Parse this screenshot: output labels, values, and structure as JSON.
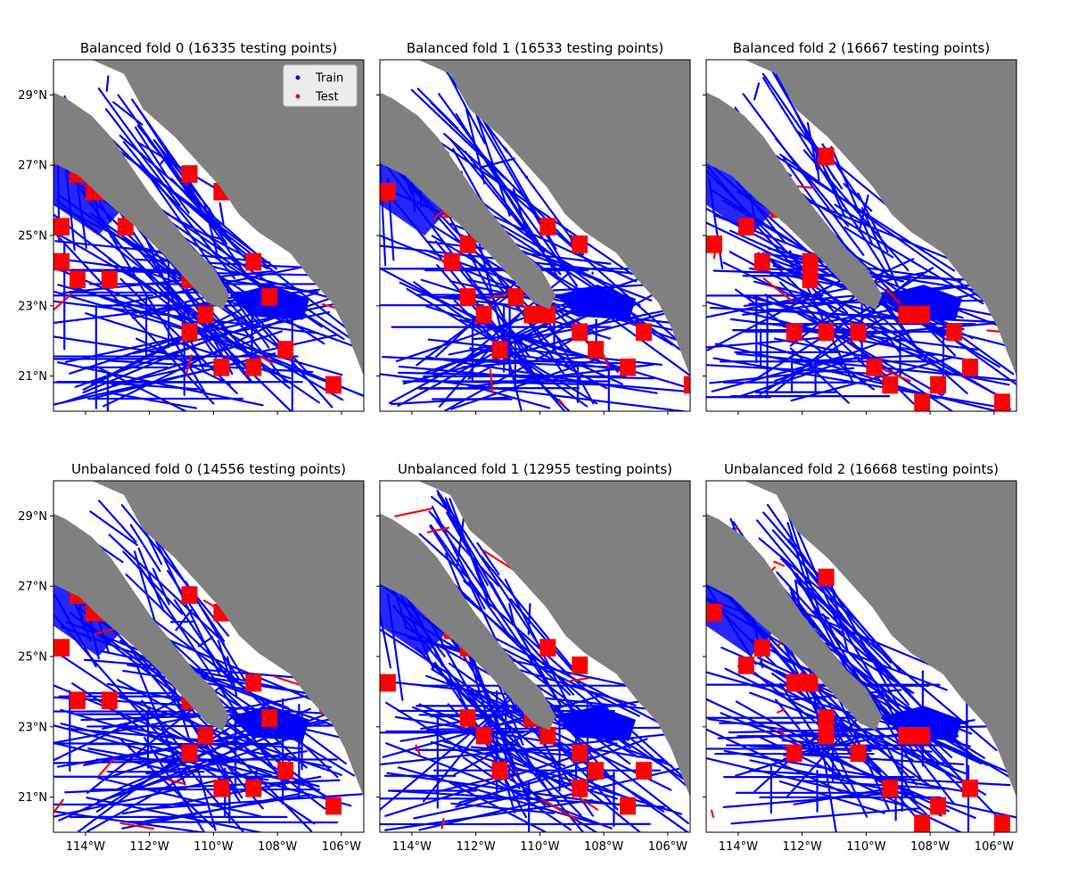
{
  "colors": {
    "train": "#0000ff",
    "test": "#ff0000",
    "land": "#808080",
    "ocean": "#ffffff"
  },
  "chart_data": [
    {
      "type": "scatter",
      "title": "Balanced fold 0 (16335 testing points)",
      "xlim": [
        -115,
        -105.3
      ],
      "ylim": [
        20,
        30
      ],
      "xticks": [
        {
          "value": -114,
          "label": "114°W"
        },
        {
          "value": -112,
          "label": "112°W"
        },
        {
          "value": -110,
          "label": "110°W"
        },
        {
          "value": -108,
          "label": "108°W"
        },
        {
          "value": -106,
          "label": "106°W"
        }
      ],
      "yticks": [
        {
          "value": 21,
          "label": "21°N"
        },
        {
          "value": 23,
          "label": "23°N"
        },
        {
          "value": 25,
          "label": "25°N"
        },
        {
          "value": 27,
          "label": "27°N"
        },
        {
          "value": 29,
          "label": "29°N"
        }
      ],
      "show_xticklabels": false,
      "show_yticklabels": true,
      "legend": {
        "position": "top-right",
        "entries": [
          "Train",
          "Test"
        ]
      },
      "series": [
        {
          "name": "Train"
        },
        {
          "name": "Test"
        }
      ],
      "test_blocks": [
        [
          -115,
          27
        ],
        [
          -114.5,
          26.5
        ],
        [
          -114,
          26
        ],
        [
          -113.5,
          26
        ],
        [
          -113,
          25
        ],
        [
          -111,
          26.5
        ],
        [
          -115,
          25
        ],
        [
          -115,
          24
        ],
        [
          -114.5,
          23.5
        ],
        [
          -113.5,
          23.5
        ],
        [
          -111,
          23.5
        ],
        [
          -110.5,
          22.5
        ],
        [
          -111,
          22
        ],
        [
          -108.5,
          23
        ],
        [
          -110,
          21
        ],
        [
          -109,
          21
        ],
        [
          -108,
          21.5
        ],
        [
          -106.5,
          20.5
        ],
        [
          -109,
          24
        ],
        [
          -110,
          26
        ]
      ]
    },
    {
      "type": "scatter",
      "title": "Balanced fold 1 (16533 testing points)",
      "xlim": [
        -115,
        -105.3
      ],
      "ylim": [
        20,
        30
      ],
      "xticks": [
        {
          "value": -114,
          "label": "114°W"
        },
        {
          "value": -112,
          "label": "112°W"
        },
        {
          "value": -110,
          "label": "110°W"
        },
        {
          "value": -108,
          "label": "108°W"
        },
        {
          "value": -106,
          "label": "106°W"
        }
      ],
      "yticks": [
        {
          "value": 21,
          "label": "21°N"
        },
        {
          "value": 23,
          "label": "23°N"
        },
        {
          "value": 25,
          "label": "25°N"
        },
        {
          "value": 27,
          "label": "27°N"
        },
        {
          "value": 29,
          "label": "29°N"
        }
      ],
      "show_xticklabels": false,
      "show_yticklabels": false,
      "legend": null,
      "series": [],
      "test_blocks": [
        [
          -115,
          26
        ],
        [
          -113,
          25.5
        ],
        [
          -112.5,
          24.5
        ],
        [
          -113,
          24
        ],
        [
          -112.5,
          23
        ],
        [
          -112,
          22.5
        ],
        [
          -111,
          23
        ],
        [
          -110.5,
          22.5
        ],
        [
          -110,
          22.5
        ],
        [
          -109,
          22
        ],
        [
          -108.5,
          21.5
        ],
        [
          -107.5,
          21
        ],
        [
          -107,
          22
        ],
        [
          -105.5,
          20.5
        ],
        [
          -110,
          25
        ],
        [
          -109,
          24.5
        ],
        [
          -111.5,
          21.5
        ]
      ]
    },
    {
      "type": "scatter",
      "title": "Balanced fold 2 (16667 testing points)",
      "xlim": [
        -115,
        -105.3
      ],
      "ylim": [
        20,
        30
      ],
      "xticks": [
        {
          "value": -114,
          "label": "114°W"
        },
        {
          "value": -112,
          "label": "112°W"
        },
        {
          "value": -110,
          "label": "110°W"
        },
        {
          "value": -108,
          "label": "108°W"
        },
        {
          "value": -106,
          "label": "106°W"
        }
      ],
      "yticks": [
        {
          "value": 21,
          "label": "21°N"
        },
        {
          "value": 23,
          "label": "23°N"
        },
        {
          "value": 25,
          "label": "25°N"
        },
        {
          "value": 27,
          "label": "27°N"
        },
        {
          "value": 29,
          "label": "29°N"
        }
      ],
      "show_xticklabels": false,
      "show_yticklabels": false,
      "legend": null,
      "series": [],
      "test_blocks": [
        [
          -111.5,
          27
        ],
        [
          -113,
          25.5
        ],
        [
          -114,
          25
        ],
        [
          -115,
          24.5
        ],
        [
          -113.5,
          24
        ],
        [
          -112,
          24
        ],
        [
          -112,
          23.5
        ],
        [
          -112.5,
          22
        ],
        [
          -111.5,
          22
        ],
        [
          -110.5,
          22
        ],
        [
          -109,
          22.5
        ],
        [
          -108.5,
          22.5
        ],
        [
          -107.5,
          22
        ],
        [
          -110,
          21
        ],
        [
          -109.5,
          20.5
        ],
        [
          -108,
          20.5
        ],
        [
          -107,
          21
        ],
        [
          -106,
          20
        ],
        [
          -108.5,
          20
        ]
      ]
    },
    {
      "type": "scatter",
      "title": "Unbalanced fold 0 (14556 testing points)",
      "xlim": [
        -115,
        -105.3
      ],
      "ylim": [
        20,
        30
      ],
      "xticks": [
        {
          "value": -114,
          "label": "114°W"
        },
        {
          "value": -112,
          "label": "112°W"
        },
        {
          "value": -110,
          "label": "110°W"
        },
        {
          "value": -108,
          "label": "108°W"
        },
        {
          "value": -106,
          "label": "106°W"
        }
      ],
      "yticks": [
        {
          "value": 21,
          "label": "21°N"
        },
        {
          "value": 23,
          "label": "23°N"
        },
        {
          "value": 25,
          "label": "25°N"
        },
        {
          "value": 27,
          "label": "27°N"
        },
        {
          "value": 29,
          "label": "29°N"
        }
      ],
      "show_xticklabels": true,
      "show_yticklabels": true,
      "legend": null,
      "series": [],
      "test_blocks": [
        [
          -115,
          27
        ],
        [
          -114.5,
          26.5
        ],
        [
          -114,
          26
        ],
        [
          -113.5,
          26
        ],
        [
          -111,
          26.5
        ],
        [
          -115,
          25
        ],
        [
          -114.5,
          23.5
        ],
        [
          -113.5,
          23.5
        ],
        [
          -111,
          23.5
        ],
        [
          -110.5,
          22.5
        ],
        [
          -111,
          22
        ],
        [
          -108.5,
          23
        ],
        [
          -110,
          21
        ],
        [
          -109,
          21
        ],
        [
          -108,
          21.5
        ],
        [
          -106.5,
          20.5
        ],
        [
          -109,
          24
        ],
        [
          -110,
          26
        ]
      ]
    },
    {
      "type": "scatter",
      "title": "Unbalanced fold 1 (12955 testing points)",
      "xlim": [
        -115,
        -105.3
      ],
      "ylim": [
        20,
        30
      ],
      "xticks": [
        {
          "value": -114,
          "label": "114°W"
        },
        {
          "value": -112,
          "label": "112°W"
        },
        {
          "value": -110,
          "label": "110°W"
        },
        {
          "value": -108,
          "label": "108°W"
        },
        {
          "value": -106,
          "label": "106°W"
        }
      ],
      "yticks": [
        {
          "value": 21,
          "label": "21°N"
        },
        {
          "value": 23,
          "label": "23°N"
        },
        {
          "value": 25,
          "label": "25°N"
        },
        {
          "value": 27,
          "label": "27°N"
        },
        {
          "value": 29,
          "label": "29°N"
        }
      ],
      "show_xticklabels": true,
      "show_yticklabels": false,
      "legend": null,
      "series": [],
      "test_blocks": [
        [
          -115,
          24
        ],
        [
          -113,
          25.5
        ],
        [
          -112.5,
          25
        ],
        [
          -112.5,
          23
        ],
        [
          -112,
          22.5
        ],
        [
          -110.5,
          23
        ],
        [
          -110,
          22.5
        ],
        [
          -109,
          22
        ],
        [
          -108.5,
          21.5
        ],
        [
          -109,
          21
        ],
        [
          -107.5,
          20.5
        ],
        [
          -107,
          21.5
        ],
        [
          -110,
          25
        ],
        [
          -109,
          24.5
        ],
        [
          -111.5,
          21.5
        ]
      ]
    },
    {
      "type": "scatter",
      "title": "Unbalanced fold 2 (16668 testing points)",
      "xlim": [
        -115,
        -105.3
      ],
      "ylim": [
        20,
        30
      ],
      "xticks": [
        {
          "value": -114,
          "label": "114°W"
        },
        {
          "value": -112,
          "label": "112°W"
        },
        {
          "value": -110,
          "label": "110°W"
        },
        {
          "value": -108,
          "label": "108°W"
        },
        {
          "value": -106,
          "label": "106°W"
        }
      ],
      "yticks": [
        {
          "value": 21,
          "label": "21°N"
        },
        {
          "value": 23,
          "label": "23°N"
        },
        {
          "value": 25,
          "label": "25°N"
        },
        {
          "value": 27,
          "label": "27°N"
        },
        {
          "value": 29,
          "label": "29°N"
        }
      ],
      "show_xticklabels": true,
      "show_yticklabels": false,
      "legend": null,
      "series": [],
      "test_blocks": [
        [
          -115,
          26
        ],
        [
          -111.5,
          27
        ],
        [
          -113.5,
          25
        ],
        [
          -114,
          24.5
        ],
        [
          -112.5,
          24
        ],
        [
          -112,
          24
        ],
        [
          -111.5,
          23
        ],
        [
          -111.5,
          22.5
        ],
        [
          -112.5,
          22
        ],
        [
          -110.5,
          22
        ],
        [
          -109,
          22.5
        ],
        [
          -108.5,
          22.5
        ],
        [
          -109.5,
          21
        ],
        [
          -108,
          20.5
        ],
        [
          -107,
          21
        ],
        [
          -106,
          20
        ],
        [
          -108.5,
          20
        ]
      ]
    }
  ]
}
